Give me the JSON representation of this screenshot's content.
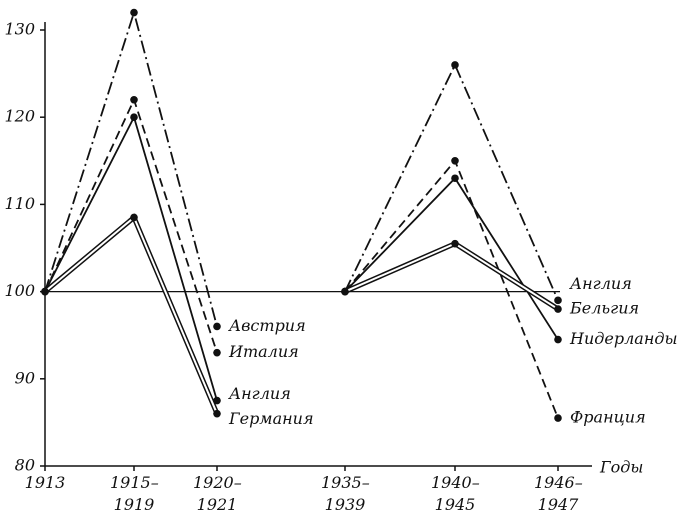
{
  "chart_data": {
    "type": "line",
    "x_label": "Годы",
    "categories": [
      "1913",
      "1915– 1919",
      "1920– 1921",
      "1935– 1939",
      "1940– 1945",
      "1946– 1947"
    ],
    "ylim": [
      80,
      130
    ],
    "yticks": [
      80,
      90,
      100,
      110,
      120,
      130
    ],
    "baseline": 100,
    "series": [
      {
        "name": "Австрия",
        "color": "#111111",
        "line_style": "dash-dot",
        "values": [
          100,
          132,
          96,
          null,
          null,
          null
        ]
      },
      {
        "name": "Италия",
        "color": "#111111",
        "line_style": "dashed",
        "values": [
          100,
          122,
          93,
          null,
          null,
          null
        ]
      },
      {
        "name": "Англия",
        "color": "#111111",
        "line_style": "solid",
        "values": [
          100,
          120,
          87.5,
          null,
          null,
          null
        ]
      },
      {
        "name": "Германия",
        "color": "#111111",
        "line_style": "double",
        "values": [
          100,
          108.5,
          86,
          null,
          null,
          null
        ]
      },
      {
        "name": "Англия",
        "color": "#111111",
        "line_style": "dash-dot",
        "values": [
          null,
          null,
          null,
          100,
          126,
          99
        ]
      },
      {
        "name": "Франция",
        "color": "#111111",
        "line_style": "dashed",
        "values": [
          null,
          null,
          null,
          100,
          115,
          85.5
        ]
      },
      {
        "name": "Нидерланды",
        "color": "#111111",
        "line_style": "solid",
        "values": [
          null,
          null,
          null,
          100,
          113,
          94.5
        ]
      },
      {
        "name": "Бельгия",
        "color": "#111111",
        "line_style": "double",
        "values": [
          null,
          null,
          null,
          100,
          105.5,
          98
        ]
      }
    ]
  }
}
